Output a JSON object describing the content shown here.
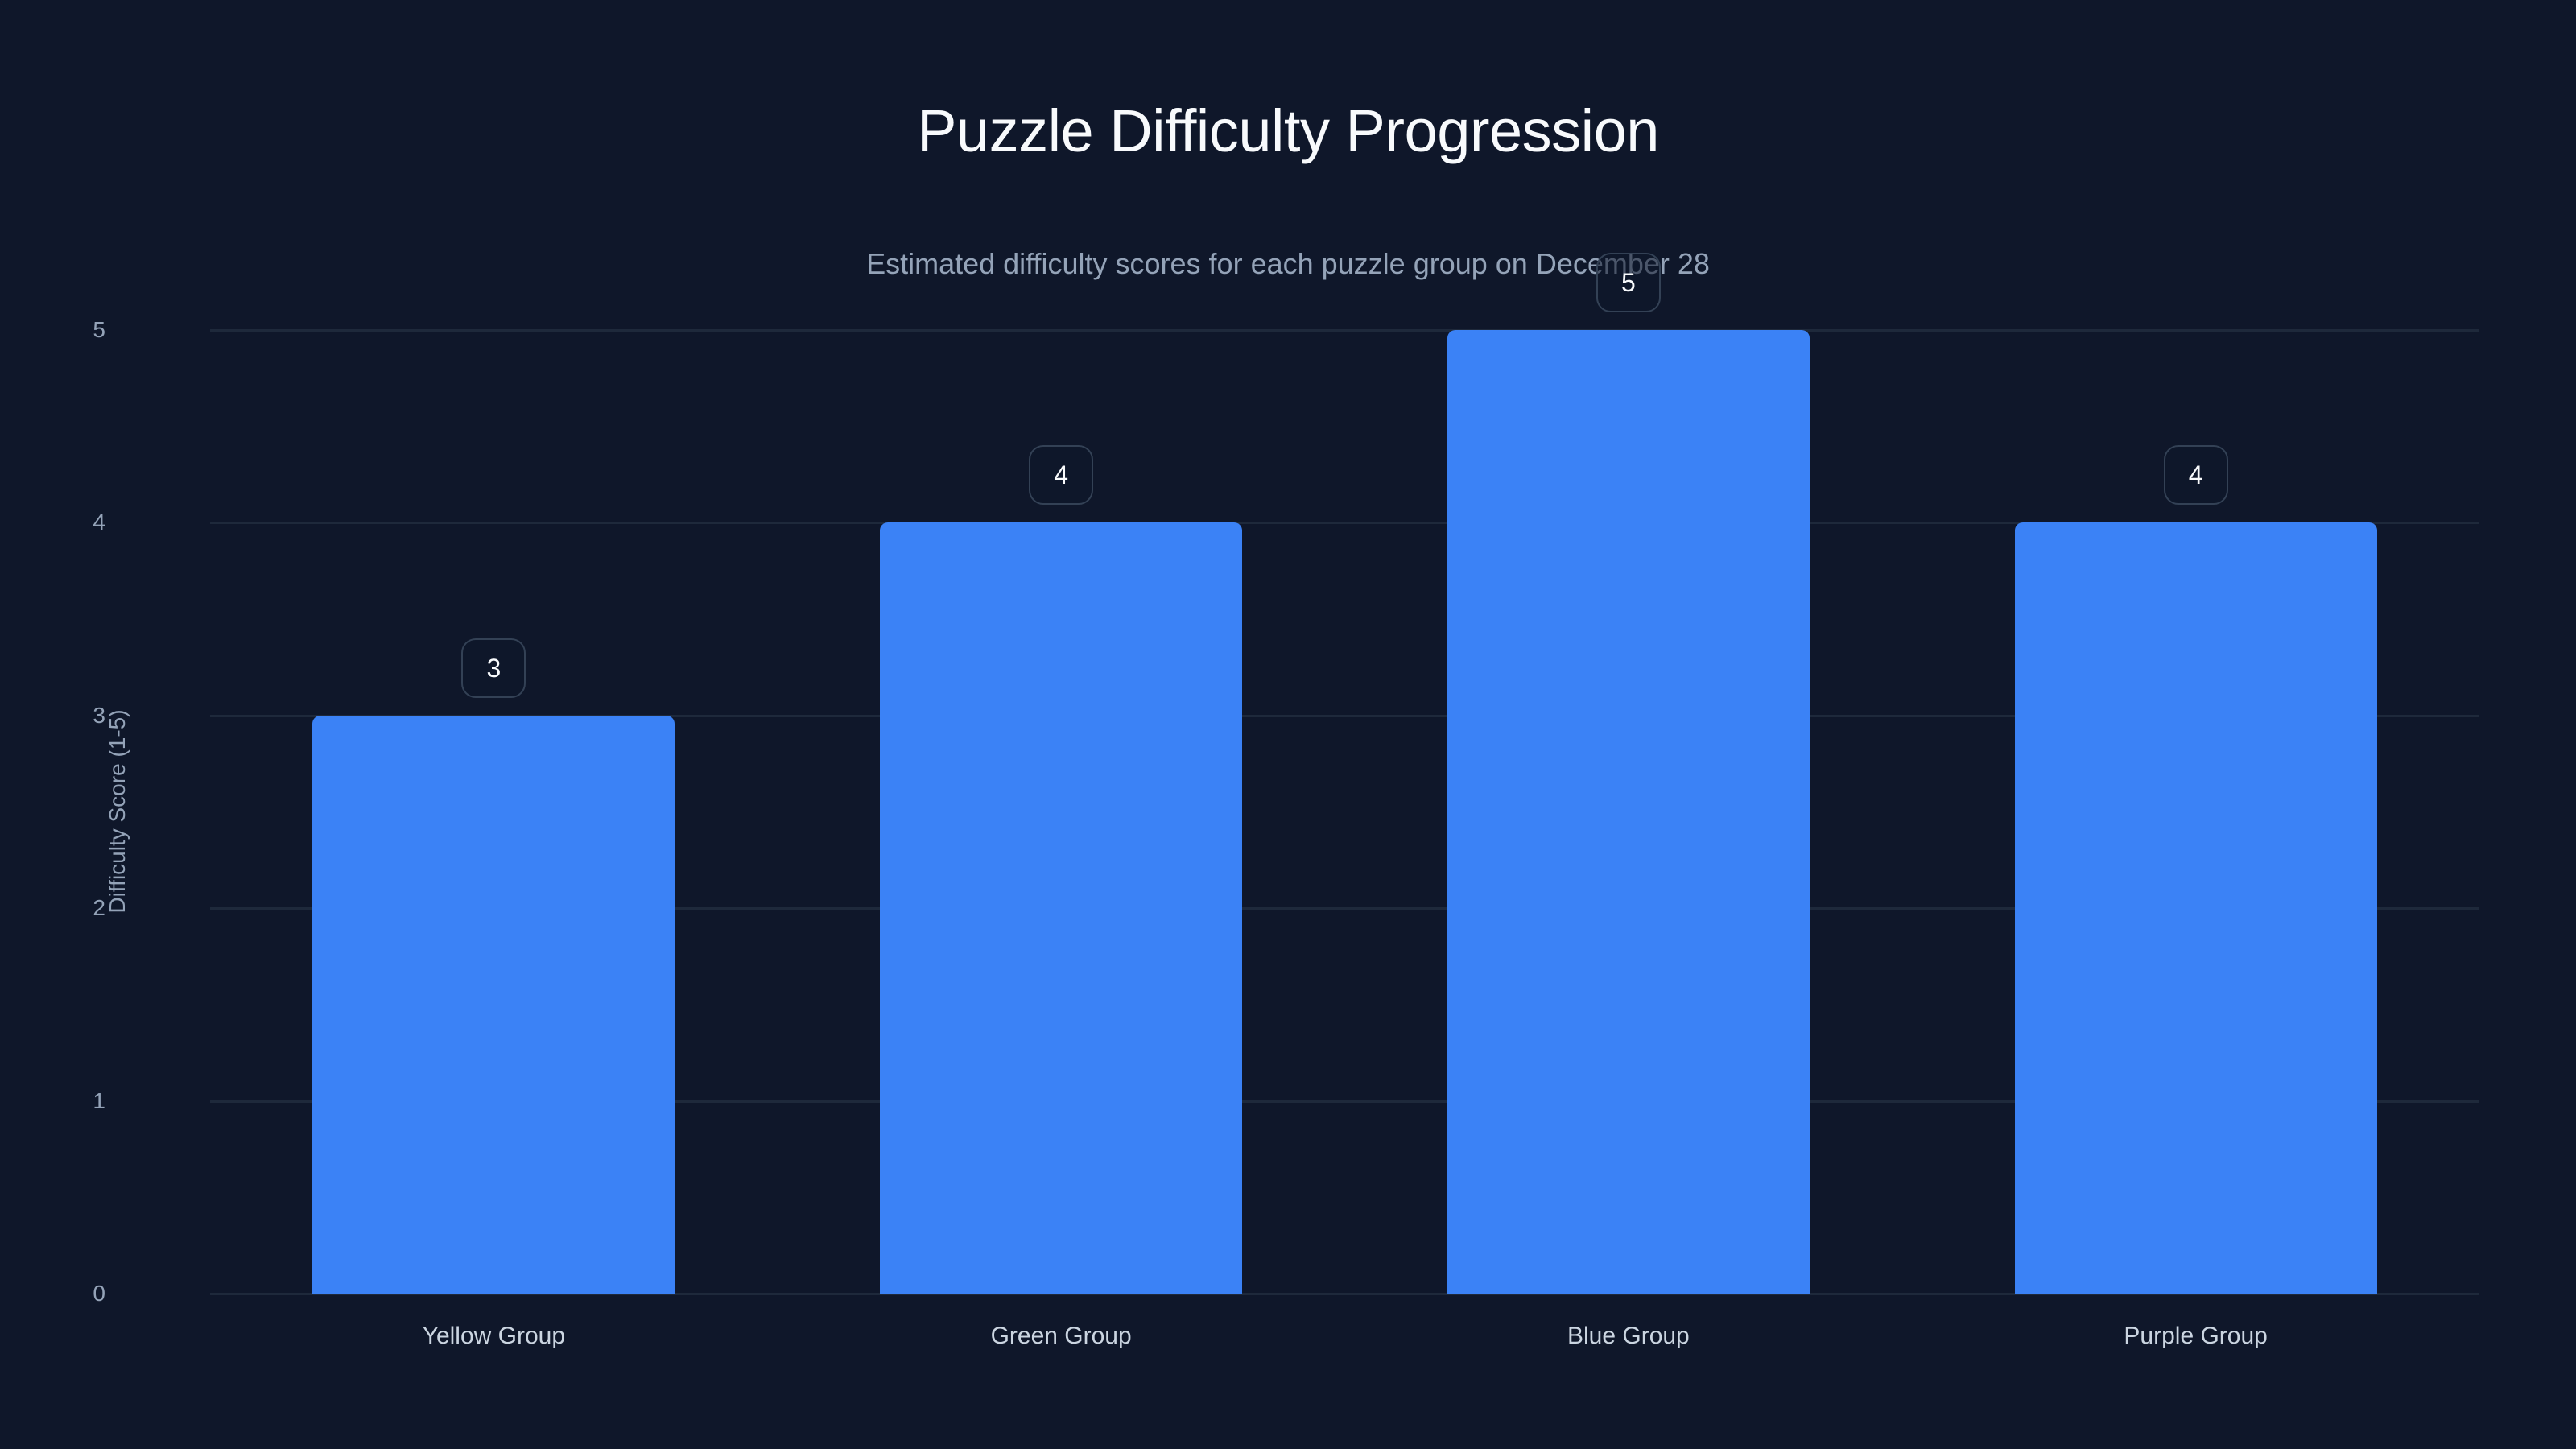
{
  "chart_data": {
    "type": "bar",
    "title": "Puzzle Difficulty Progression",
    "subtitle": "Estimated difficulty scores for each puzzle group on December 28",
    "xlabel": "",
    "ylabel": "Difficulty Score (1-5)",
    "categories": [
      "Yellow Group",
      "Green Group",
      "Blue Group",
      "Purple Group"
    ],
    "values": [
      3,
      4,
      5,
      4
    ],
    "data_labels": [
      "3",
      "4",
      "5",
      "4"
    ],
    "ylim": [
      0,
      5
    ],
    "yticks": [
      "0",
      "1",
      "2",
      "3",
      "4",
      "5"
    ],
    "grid": true,
    "legend": null,
    "bar_color": "#3b82f6"
  },
  "colors": {
    "background": "#0f172a",
    "bar": "#3b82f6",
    "gridline": "#1e293b",
    "tick_label": "#94a3b8",
    "category_label": "#cbd5e1",
    "title": "#f8fafc",
    "value_box_border": "#334155"
  }
}
